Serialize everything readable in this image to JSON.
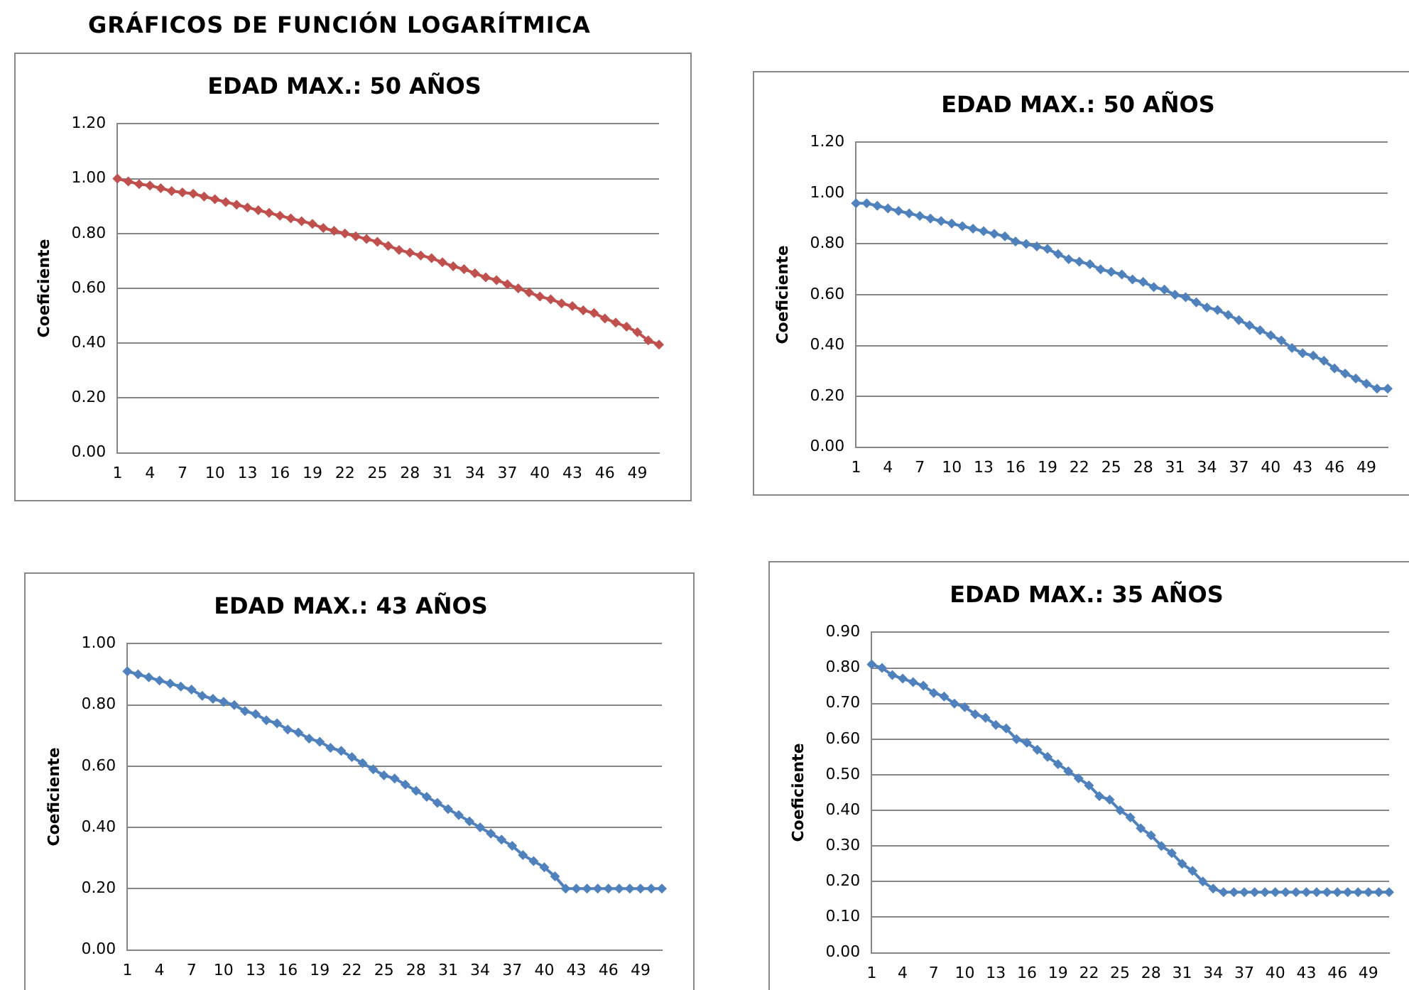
{
  "chart_data": [
    {
      "type": "line",
      "title": "EDAD MAX.: 50 AÑOS",
      "ylabel": "Coeficiente",
      "annotations": [
        "GRÁFICOS DE FUNCIÓN LOGARÍTMICA"
      ],
      "categories": [
        "1",
        null,
        null,
        "4",
        null,
        null,
        "7",
        null,
        null,
        "10",
        null,
        null,
        "13",
        null,
        null,
        "16",
        null,
        null,
        "19",
        null,
        null,
        "22",
        null,
        null,
        "25",
        null,
        null,
        "28",
        null,
        null,
        "31",
        null,
        null,
        "34",
        null,
        null,
        "37",
        null,
        null,
        "40",
        null,
        null,
        "43",
        null,
        null,
        "46",
        null,
        null,
        "49",
        null,
        null
      ],
      "series": [
        {
          "color": "#c0504d",
          "values": [
            1.0,
            0.99,
            0.98,
            0.975,
            0.965,
            0.955,
            0.95,
            0.945,
            0.935,
            0.925,
            0.915,
            0.905,
            0.895,
            0.885,
            0.875,
            0.865,
            0.855,
            0.845,
            0.835,
            0.82,
            0.81,
            0.8,
            0.79,
            0.78,
            0.77,
            0.755,
            0.74,
            0.73,
            0.72,
            0.71,
            0.695,
            0.68,
            0.67,
            0.655,
            0.64,
            0.63,
            0.615,
            0.6,
            0.585,
            0.57,
            0.56,
            0.545,
            0.535,
            0.52,
            0.51,
            0.49,
            0.475,
            0.46,
            0.44,
            0.41,
            0.395
          ]
        }
      ],
      "ylim": [
        0,
        1.2
      ],
      "yticks": [
        {
          "value": 0,
          "label": "0.00"
        },
        {
          "value": 0.2,
          "label": "0.20"
        },
        {
          "value": 0.4,
          "label": "0.40"
        },
        {
          "value": 0.6,
          "label": "0.60"
        },
        {
          "value": 0.8,
          "label": "0.80"
        },
        {
          "value": 1,
          "label": "1.00"
        },
        {
          "value": 1.2,
          "label": "1.20"
        }
      ],
      "grid": "y",
      "legend": false,
      "marker": "diamond"
    },
    {
      "type": "line",
      "title": "EDAD MAX.: 50 AÑOS",
      "ylabel": "Coeficiente",
      "categories": [
        "1",
        null,
        null,
        "4",
        null,
        null,
        "7",
        null,
        null,
        "10",
        null,
        null,
        "13",
        null,
        null,
        "16",
        null,
        null,
        "19",
        null,
        null,
        "22",
        null,
        null,
        "25",
        null,
        null,
        "28",
        null,
        null,
        "31",
        null,
        null,
        "34",
        null,
        null,
        "37",
        null,
        null,
        "40",
        null,
        null,
        "43",
        null,
        null,
        "46",
        null,
        null,
        "49",
        null,
        null
      ],
      "series": [
        {
          "color": "#4f81bd",
          "values": [
            0.96,
            0.96,
            0.95,
            0.94,
            0.93,
            0.92,
            0.91,
            0.9,
            0.89,
            0.88,
            0.87,
            0.86,
            0.85,
            0.84,
            0.83,
            0.81,
            0.8,
            0.79,
            0.78,
            0.76,
            0.74,
            0.73,
            0.72,
            0.7,
            0.69,
            0.68,
            0.66,
            0.65,
            0.63,
            0.62,
            0.6,
            0.59,
            0.57,
            0.55,
            0.54,
            0.52,
            0.5,
            0.48,
            0.46,
            0.44,
            0.42,
            0.39,
            0.37,
            0.36,
            0.34,
            0.31,
            0.29,
            0.27,
            0.25,
            0.23,
            0.23
          ]
        }
      ],
      "ylim": [
        0,
        1.2
      ],
      "yticks": [
        {
          "value": 0,
          "label": "0.00"
        },
        {
          "value": 0.2,
          "label": "0.20"
        },
        {
          "value": 0.4,
          "label": "0.40"
        },
        {
          "value": 0.6,
          "label": "0.60"
        },
        {
          "value": 0.8,
          "label": "0.80"
        },
        {
          "value": 1,
          "label": "1.00"
        },
        {
          "value": 1.2,
          "label": "1.20"
        }
      ],
      "grid": "y",
      "legend": false,
      "marker": "diamond"
    },
    {
      "type": "line",
      "title": "EDAD MAX.: 43 AÑOS",
      "ylabel": "Coeficiente",
      "categories": [
        "1",
        null,
        null,
        "4",
        null,
        null,
        "7",
        null,
        null,
        "10",
        null,
        null,
        "13",
        null,
        null,
        "16",
        null,
        null,
        "19",
        null,
        null,
        "22",
        null,
        null,
        "25",
        null,
        null,
        "28",
        null,
        null,
        "31",
        null,
        null,
        "34",
        null,
        null,
        "37",
        null,
        null,
        "40",
        null,
        null,
        "43",
        null,
        null,
        "46",
        null,
        null,
        "49",
        null,
        null
      ],
      "series": [
        {
          "color": "#4f81bd",
          "values": [
            0.91,
            0.9,
            0.89,
            0.88,
            0.87,
            0.86,
            0.85,
            0.83,
            0.82,
            0.81,
            0.8,
            0.78,
            0.77,
            0.75,
            0.74,
            0.72,
            0.71,
            0.69,
            0.68,
            0.66,
            0.65,
            0.63,
            0.61,
            0.59,
            0.57,
            0.56,
            0.54,
            0.52,
            0.5,
            0.48,
            0.46,
            0.44,
            0.42,
            0.4,
            0.38,
            0.36,
            0.34,
            0.31,
            0.29,
            0.27,
            0.24,
            0.2,
            0.2,
            0.2,
            0.2,
            0.2,
            0.2,
            0.2,
            0.2,
            0.2,
            0.2
          ]
        }
      ],
      "ylim": [
        0,
        1
      ],
      "yticks": [
        {
          "value": 0,
          "label": "0.00"
        },
        {
          "value": 0.2,
          "label": "0.20"
        },
        {
          "value": 0.4,
          "label": "0.40"
        },
        {
          "value": 0.6,
          "label": "0.60"
        },
        {
          "value": 0.8,
          "label": "0.80"
        },
        {
          "value": 1,
          "label": "1.00"
        }
      ],
      "grid": "y",
      "legend": false,
      "marker": "diamond"
    },
    {
      "type": "line",
      "title": "EDAD MAX.: 35 AÑOS",
      "ylabel": "Coeficiente",
      "categories": [
        "1",
        null,
        null,
        "4",
        null,
        null,
        "7",
        null,
        null,
        "10",
        null,
        null,
        "13",
        null,
        null,
        "16",
        null,
        null,
        "19",
        null,
        null,
        "22",
        null,
        null,
        "25",
        null,
        null,
        "28",
        null,
        null,
        "31",
        null,
        null,
        "34",
        null,
        null,
        "37",
        null,
        null,
        "40",
        null,
        null,
        "43",
        null,
        null,
        "46",
        null,
        null,
        "49",
        null,
        null
      ],
      "series": [
        {
          "color": "#4f81bd",
          "values": [
            0.81,
            0.8,
            0.78,
            0.77,
            0.76,
            0.75,
            0.73,
            0.72,
            0.7,
            0.69,
            0.67,
            0.66,
            0.64,
            0.63,
            0.6,
            0.59,
            0.57,
            0.55,
            0.53,
            0.51,
            0.49,
            0.47,
            0.44,
            0.43,
            0.4,
            0.38,
            0.35,
            0.33,
            0.3,
            0.28,
            0.25,
            0.23,
            0.2,
            0.18,
            0.17,
            0.17,
            0.17,
            0.17,
            0.17,
            0.17,
            0.17,
            0.17,
            0.17,
            0.17,
            0.17,
            0.17,
            0.17,
            0.17,
            0.17,
            0.17,
            0.17
          ]
        }
      ],
      "ylim": [
        0,
        0.9
      ],
      "yticks": [
        {
          "value": 0,
          "label": "0.00"
        },
        {
          "value": 0.1,
          "label": "0.10"
        },
        {
          "value": 0.2,
          "label": "0.20"
        },
        {
          "value": 0.3,
          "label": "0.30"
        },
        {
          "value": 0.4,
          "label": "0.40"
        },
        {
          "value": 0.5,
          "label": "0.50"
        },
        {
          "value": 0.6,
          "label": "0.60"
        },
        {
          "value": 0.7,
          "label": "0.70"
        },
        {
          "value": 0.8,
          "label": "0.80"
        },
        {
          "value": 0.9,
          "label": "0.90"
        }
      ],
      "grid": "y",
      "legend": false,
      "marker": "diamond"
    }
  ]
}
